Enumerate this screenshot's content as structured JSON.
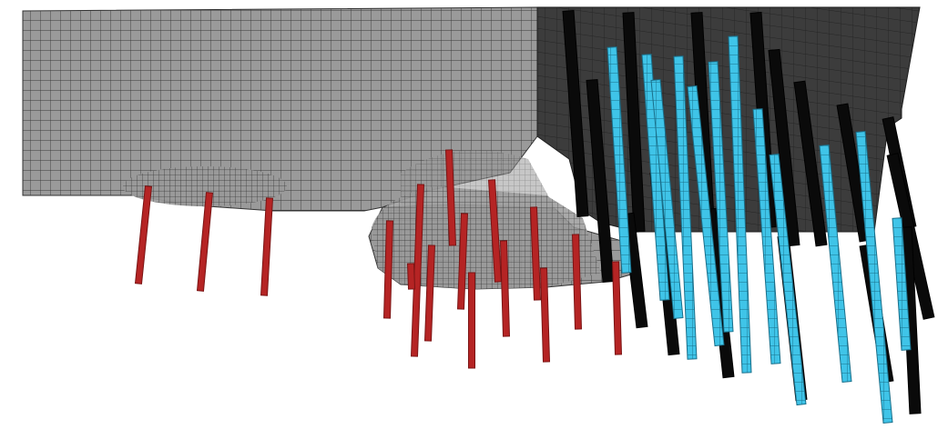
{
  "figure": {
    "kind": "finite-element-mesh-with-pile-groups",
    "colors": {
      "background": "#ffffff",
      "mesh_fill_light": "#9a9a9a",
      "mesh_lines_light": "#3a3a3a",
      "mesh_fill_dark": "#3c3c3c",
      "mesh_lines_dark": "#222222",
      "pile_red": "#b52424",
      "pile_cyan": "#3fc4e8",
      "pile_black": "#0a0a0a"
    },
    "pile_groups": [
      {
        "name": "red",
        "count": 16
      },
      {
        "name": "cyan",
        "count": 12
      },
      {
        "name": "black",
        "count": 14
      }
    ]
  }
}
